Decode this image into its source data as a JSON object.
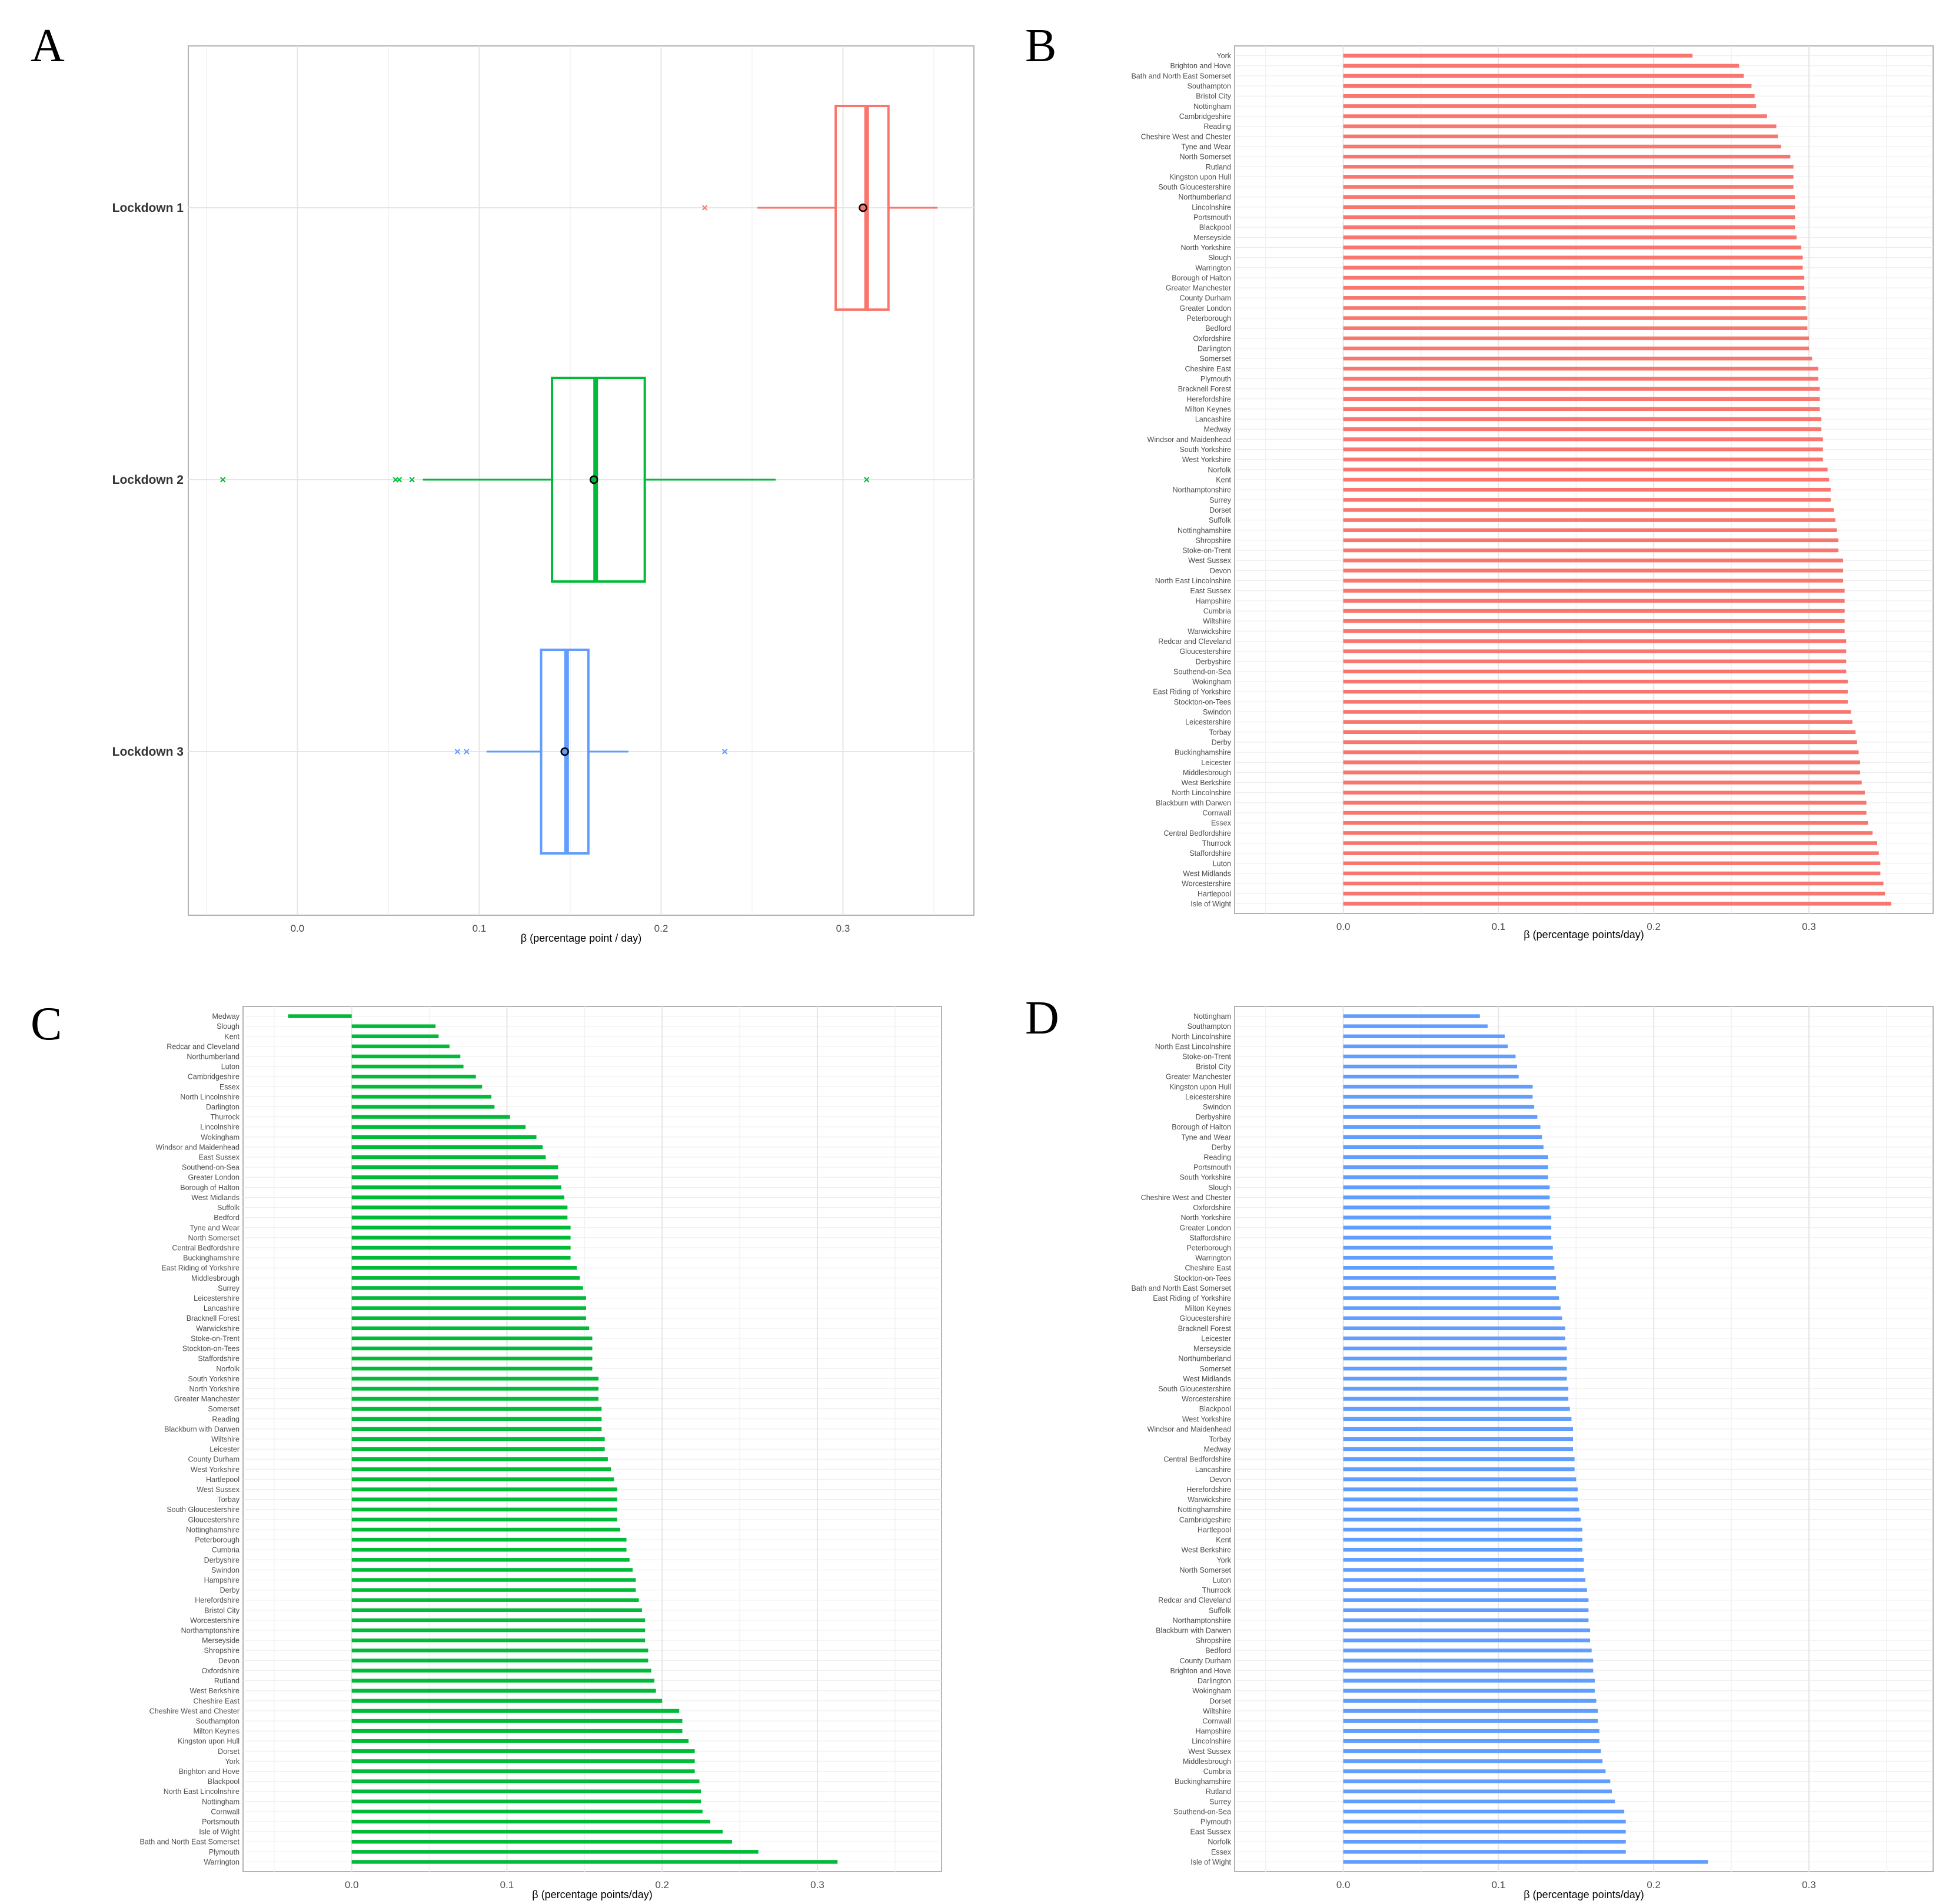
{
  "panels": {
    "A": {
      "letter": "A"
    },
    "B": {
      "letter": "B"
    },
    "C": {
      "letter": "C"
    },
    "D": {
      "letter": "D"
    }
  },
  "chart_data": [
    {
      "panel": "A",
      "type": "boxplot",
      "orientation": "horizontal",
      "xlabel": "β (percentage point / day)",
      "xlim": [
        -0.06,
        0.372
      ],
      "xticks": [
        0.0,
        0.1,
        0.2,
        0.3
      ],
      "xtick_labels": [
        "0.0",
        "0.1",
        "0.2",
        "0.3"
      ],
      "grid": true,
      "groups": [
        {
          "name": "Lockdown 1",
          "color": "#F8766D",
          "whisker_low": 0.253,
          "q1": 0.296,
          "median": 0.313,
          "q3": 0.325,
          "whisker_high": 0.352,
          "mean": 0.311,
          "outliers": [
            0.224
          ]
        },
        {
          "name": "Lockdown 2",
          "color": "#00BA38",
          "whisker_low": 0.069,
          "q1": 0.14,
          "median": 0.164,
          "q3": 0.191,
          "whisker_high": 0.263,
          "mean": 0.163,
          "outliers": [
            -0.041,
            0.054,
            0.056,
            0.063,
            0.313
          ]
        },
        {
          "name": "Lockdown 3",
          "color": "#619CFF",
          "whisker_low": 0.104,
          "q1": 0.134,
          "median": 0.148,
          "q3": 0.16,
          "whisker_high": 0.182,
          "mean": 0.147,
          "outliers": [
            0.088,
            0.093,
            0.235
          ]
        }
      ]
    },
    {
      "panel": "B",
      "type": "bar",
      "orientation": "horizontal",
      "color": "#F8766D",
      "xlabel": "β (percentage points/day)",
      "xlim": [
        -0.07,
        0.38
      ],
      "xticks": [
        0.0,
        0.1,
        0.2,
        0.3
      ],
      "xtick_labels": [
        "0.0",
        "0.1",
        "0.2",
        "0.3"
      ],
      "grid": true,
      "categories": [
        "York",
        "Brighton and Hove",
        "Bath and North East Somerset",
        "Southampton",
        "Bristol City",
        "Nottingham",
        "Cambridgeshire",
        "Reading",
        "Cheshire West and Chester",
        "Tyne and Wear",
        "North Somerset",
        "Rutland",
        "Kingston upon Hull",
        "South Gloucestershire",
        "Northumberland",
        "Lincolnshire",
        "Portsmouth",
        "Blackpool",
        "Merseyside",
        "North Yorkshire",
        "Slough",
        "Warrington",
        "Borough of Halton",
        "Greater Manchester",
        "County Durham",
        "Greater London",
        "Peterborough",
        "Bedford",
        "Oxfordshire",
        "Darlington",
        "Somerset",
        "Cheshire East",
        "Plymouth",
        "Bracknell Forest",
        "Herefordshire",
        "Milton Keynes",
        "Lancashire",
        "Medway",
        "Windsor and Maidenhead",
        "South Yorkshire",
        "West Yorkshire",
        "Norfolk",
        "Kent",
        "Northamptonshire",
        "Surrey",
        "Dorset",
        "Suffolk",
        "Nottinghamshire",
        "Shropshire",
        "Stoke-on-Trent",
        "West Sussex",
        "Devon",
        "North East Lincolnshire",
        "East Sussex",
        "Hampshire",
        "Cumbria",
        "Wiltshire",
        "Warwickshire",
        "Redcar and Cleveland",
        "Gloucestershire",
        "Derbyshire",
        "Southend-on-Sea",
        "Wokingham",
        "East Riding of Yorkshire",
        "Stockton-on-Tees",
        "Swindon",
        "Leicestershire",
        "Torbay",
        "Derby",
        "Buckinghamshire",
        "Leicester",
        "Middlesbrough",
        "West Berkshire",
        "North Lincolnshire",
        "Blackburn with Darwen",
        "Cornwall",
        "Essex",
        "Central Bedfordshire",
        "Thurrock",
        "Staffordshire",
        "Luton",
        "West Midlands",
        "Worcestershire",
        "Hartlepool",
        "Isle of Wight"
      ],
      "values": [
        0.225,
        0.255,
        0.258,
        0.263,
        0.265,
        0.266,
        0.273,
        0.279,
        0.28,
        0.282,
        0.288,
        0.29,
        0.29,
        0.29,
        0.291,
        0.291,
        0.291,
        0.291,
        0.292,
        0.295,
        0.296,
        0.296,
        0.297,
        0.297,
        0.298,
        0.298,
        0.299,
        0.299,
        0.3,
        0.3,
        0.302,
        0.306,
        0.306,
        0.307,
        0.307,
        0.307,
        0.308,
        0.308,
        0.309,
        0.309,
        0.309,
        0.312,
        0.313,
        0.314,
        0.314,
        0.316,
        0.317,
        0.318,
        0.319,
        0.319,
        0.322,
        0.322,
        0.322,
        0.323,
        0.323,
        0.323,
        0.323,
        0.323,
        0.324,
        0.324,
        0.324,
        0.324,
        0.325,
        0.325,
        0.325,
        0.327,
        0.328,
        0.33,
        0.331,
        0.332,
        0.333,
        0.333,
        0.334,
        0.336,
        0.337,
        0.337,
        0.338,
        0.341,
        0.344,
        0.345,
        0.346,
        0.346,
        0.348,
        0.349,
        0.353
      ]
    },
    {
      "panel": "C",
      "type": "bar",
      "orientation": "horizontal",
      "color": "#00BA38",
      "xlabel": "β (percentage points/day)",
      "xlim": [
        -0.07,
        0.38
      ],
      "xticks": [
        0.0,
        0.1,
        0.2,
        0.3
      ],
      "xtick_labels": [
        "0.0",
        "0.1",
        "0.2",
        "0.3"
      ],
      "grid": true,
      "categories": [
        "Medway",
        "Slough",
        "Kent",
        "Redcar and Cleveland",
        "Northumberland",
        "Luton",
        "Cambridgeshire",
        "Essex",
        "North Lincolnshire",
        "Darlington",
        "Thurrock",
        "Lincolnshire",
        "Wokingham",
        "Windsor and Maidenhead",
        "East Sussex",
        "Southend-on-Sea",
        "Greater London",
        "Borough of Halton",
        "West Midlands",
        "Suffolk",
        "Bedford",
        "Tyne and Wear",
        "North Somerset",
        "Central Bedfordshire",
        "Buckinghamshire",
        "East Riding of Yorkshire",
        "Middlesbrough",
        "Surrey",
        "Leicestershire",
        "Lancashire",
        "Bracknell Forest",
        "Warwickshire",
        "Stoke-on-Trent",
        "Stockton-on-Tees",
        "Staffordshire",
        "Norfolk",
        "South Yorkshire",
        "North Yorkshire",
        "Greater Manchester",
        "Somerset",
        "Reading",
        "Blackburn with Darwen",
        "Wiltshire",
        "Leicester",
        "County Durham",
        "West Yorkshire",
        "Hartlepool",
        "West Sussex",
        "Torbay",
        "South Gloucestershire",
        "Gloucestershire",
        "Nottinghamshire",
        "Peterborough",
        "Cumbria",
        "Derbyshire",
        "Swindon",
        "Hampshire",
        "Derby",
        "Herefordshire",
        "Bristol City",
        "Worcestershire",
        "Northamptonshire",
        "Merseyside",
        "Shropshire",
        "Devon",
        "Oxfordshire",
        "Rutland",
        "West Berkshire",
        "Cheshire East",
        "Cheshire West and Chester",
        "Southampton",
        "Milton Keynes",
        "Kingston upon Hull",
        "Dorset",
        "York",
        "Brighton and Hove",
        "Blackpool",
        "North East Lincolnshire",
        "Nottingham",
        "Cornwall",
        "Portsmouth",
        "Isle of Wight",
        "Bath and North East Somerset",
        "Plymouth",
        "Warrington"
      ],
      "values": [
        -0.041,
        0.054,
        0.056,
        0.063,
        0.07,
        0.072,
        0.08,
        0.084,
        0.09,
        0.092,
        0.102,
        0.112,
        0.119,
        0.123,
        0.125,
        0.133,
        0.133,
        0.135,
        0.137,
        0.139,
        0.139,
        0.141,
        0.141,
        0.141,
        0.141,
        0.145,
        0.147,
        0.149,
        0.151,
        0.151,
        0.151,
        0.153,
        0.155,
        0.155,
        0.155,
        0.155,
        0.159,
        0.159,
        0.159,
        0.161,
        0.161,
        0.161,
        0.163,
        0.163,
        0.165,
        0.167,
        0.169,
        0.171,
        0.171,
        0.171,
        0.171,
        0.173,
        0.177,
        0.177,
        0.179,
        0.181,
        0.183,
        0.183,
        0.185,
        0.187,
        0.189,
        0.189,
        0.189,
        0.191,
        0.191,
        0.193,
        0.195,
        0.196,
        0.2,
        0.211,
        0.213,
        0.213,
        0.217,
        0.221,
        0.221,
        0.221,
        0.224,
        0.225,
        0.225,
        0.226,
        0.231,
        0.239,
        0.245,
        0.262,
        0.313
      ]
    },
    {
      "panel": "D",
      "type": "bar",
      "orientation": "horizontal",
      "color": "#619CFF",
      "xlabel": "β (percentage points/day)",
      "xlim": [
        -0.07,
        0.38
      ],
      "xticks": [
        0.0,
        0.1,
        0.2,
        0.3
      ],
      "xtick_labels": [
        "0.0",
        "0.1",
        "0.2",
        "0.3"
      ],
      "grid": true,
      "categories": [
        "Nottingham",
        "Southampton",
        "North Lincolnshire",
        "North East Lincolnshire",
        "Stoke-on-Trent",
        "Bristol City",
        "Greater Manchester",
        "Kingston upon Hull",
        "Leicestershire",
        "Swindon",
        "Derbyshire",
        "Borough of Halton",
        "Tyne and Wear",
        "Derby",
        "Reading",
        "Portsmouth",
        "South Yorkshire",
        "Slough",
        "Cheshire West and Chester",
        "Oxfordshire",
        "North Yorkshire",
        "Greater London",
        "Staffordshire",
        "Peterborough",
        "Warrington",
        "Cheshire East",
        "Stockton-on-Tees",
        "Bath and North East Somerset",
        "East Riding of Yorkshire",
        "Milton Keynes",
        "Gloucestershire",
        "Bracknell Forest",
        "Leicester",
        "Merseyside",
        "Northumberland",
        "Somerset",
        "West Midlands",
        "South Gloucestershire",
        "Worcestershire",
        "Blackpool",
        "West Yorkshire",
        "Windsor and Maidenhead",
        "Torbay",
        "Medway",
        "Central Bedfordshire",
        "Lancashire",
        "Devon",
        "Herefordshire",
        "Warwickshire",
        "Nottinghamshire",
        "Cambridgeshire",
        "Hartlepool",
        "Kent",
        "West Berkshire",
        "York",
        "North Somerset",
        "Luton",
        "Thurrock",
        "Redcar and Cleveland",
        "Suffolk",
        "Northamptonshire",
        "Blackburn with Darwen",
        "Shropshire",
        "Bedford",
        "County Durham",
        "Brighton and Hove",
        "Darlington",
        "Wokingham",
        "Dorset",
        "Wiltshire",
        "Cornwall",
        "Hampshire",
        "Lincolnshire",
        "West Sussex",
        "Middlesbrough",
        "Cumbria",
        "Buckinghamshire",
        "Rutland",
        "Surrey",
        "Southend-on-Sea",
        "Plymouth",
        "East Sussex",
        "Norfolk",
        "Essex",
        "Isle of Wight"
      ],
      "values": [
        0.088,
        0.093,
        0.104,
        0.106,
        0.111,
        0.112,
        0.113,
        0.122,
        0.122,
        0.123,
        0.125,
        0.127,
        0.128,
        0.129,
        0.132,
        0.132,
        0.132,
        0.133,
        0.133,
        0.133,
        0.134,
        0.134,
        0.134,
        0.135,
        0.135,
        0.136,
        0.137,
        0.137,
        0.139,
        0.14,
        0.141,
        0.143,
        0.143,
        0.144,
        0.144,
        0.144,
        0.144,
        0.145,
        0.145,
        0.146,
        0.147,
        0.148,
        0.148,
        0.148,
        0.149,
        0.149,
        0.15,
        0.151,
        0.151,
        0.152,
        0.153,
        0.154,
        0.154,
        0.154,
        0.155,
        0.155,
        0.156,
        0.157,
        0.158,
        0.158,
        0.158,
        0.159,
        0.159,
        0.16,
        0.161,
        0.161,
        0.162,
        0.162,
        0.163,
        0.164,
        0.164,
        0.165,
        0.165,
        0.166,
        0.167,
        0.169,
        0.172,
        0.173,
        0.175,
        0.181,
        0.182,
        0.182,
        0.182,
        0.182,
        0.235
      ]
    }
  ]
}
